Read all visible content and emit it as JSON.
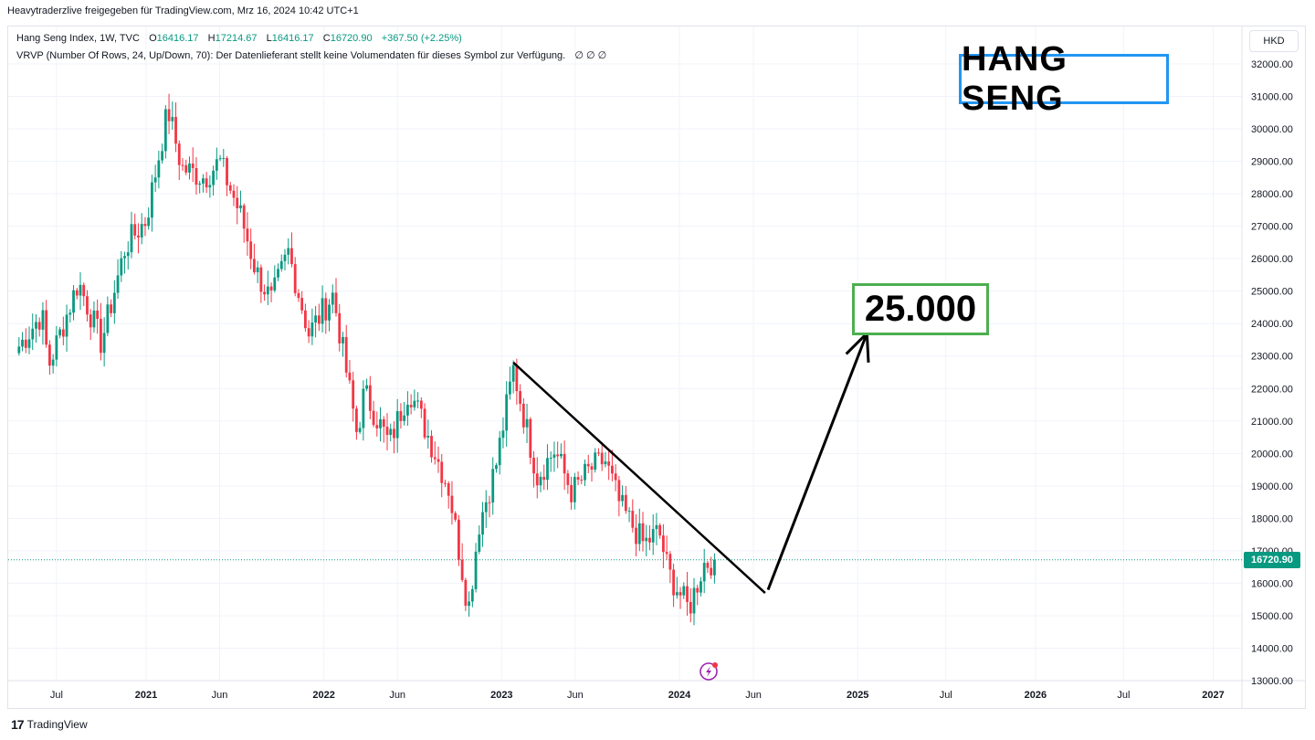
{
  "header": {
    "publisher_line": "Heavytraderzlive freigegeben für TradingView.com, Mrz 16, 2024 10:42 UTC+1"
  },
  "legend": {
    "symbol": "Hang Seng Index, 1W, TVC",
    "open_label": "O",
    "open": "16416.17",
    "high_label": "H",
    "high": "17214.67",
    "low_label": "L",
    "low": "16416.17",
    "close_label": "C",
    "close": "16720.90",
    "change": "+367.50 (+2.25%)",
    "indicator": "VRVP (Number Of Rows, 24, Up/Down, 70): Der Datenlieferant stellt keine Volumendaten für dieses Symbol zur Verfügung.",
    "indicator_values": "∅ ∅ ∅"
  },
  "currency": "HKD",
  "annotations": {
    "title": "HANG SENG",
    "target": "25.000"
  },
  "current_price": "16720.90",
  "footer": {
    "logo": "17",
    "brand": "TradingView"
  },
  "colors": {
    "up": "#089981",
    "down": "#f23645",
    "grid": "#f0f3fa",
    "price_line": "#089981",
    "title_border": "#2196f3",
    "target_border": "#4caf50",
    "drawing": "#000000"
  },
  "chart_data": {
    "type": "candlestick",
    "symbol": "Hang Seng Index",
    "interval": "1W",
    "y_axis": {
      "min": 13000,
      "max": 32000,
      "ticks": [
        32000,
        31000,
        30000,
        29000,
        28000,
        27000,
        26000,
        25000,
        24000,
        23000,
        22000,
        21000,
        20000,
        19000,
        18000,
        17000,
        16000,
        15000,
        14000,
        13000
      ],
      "tick_labels": [
        "32000.00",
        "31000.00",
        "30000.00",
        "29000.00",
        "28000.00",
        "27000.00",
        "26000.00",
        "25000.00",
        "24000.00",
        "23000.00",
        "22000.00",
        "21000.00",
        "20000.00",
        "19000.00",
        "18000.00",
        "17000.00",
        "16000.00",
        "15000.00",
        "14000.00",
        "13000.00"
      ]
    },
    "x_axis": {
      "ticks": [
        {
          "date": "2020-07-01",
          "label": "Jul"
        },
        {
          "date": "2021-01-01",
          "label": "2021"
        },
        {
          "date": "2021-06-01",
          "label": "Jun"
        },
        {
          "date": "2022-01-01",
          "label": "2022"
        },
        {
          "date": "2022-06-01",
          "label": "Jun"
        },
        {
          "date": "2023-01-01",
          "label": "2023"
        },
        {
          "date": "2023-06-01",
          "label": "Jun"
        },
        {
          "date": "2024-01-01",
          "label": "2024"
        },
        {
          "date": "2024-06-01",
          "label": "Jun"
        },
        {
          "date": "2025-01-01",
          "label": "2025"
        },
        {
          "date": "2025-07-01",
          "label": "Jul"
        },
        {
          "date": "2026-01-01",
          "label": "2026"
        },
        {
          "date": "2026-07-01",
          "label": "Jul"
        },
        {
          "date": "2027-01-01",
          "label": "2027"
        }
      ]
    },
    "anchors": [
      {
        "date": "2020-04-15",
        "close": 23300
      },
      {
        "date": "2020-06-01",
        "close": 24300
      },
      {
        "date": "2020-06-15",
        "close": 22700
      },
      {
        "date": "2020-08-15",
        "close": 25300
      },
      {
        "date": "2020-10-01",
        "close": 23400
      },
      {
        "date": "2020-11-20",
        "close": 26400
      },
      {
        "date": "2021-01-01",
        "close": 27200
      },
      {
        "date": "2021-02-15",
        "close": 30600
      },
      {
        "date": "2021-03-15",
        "close": 28800
      },
      {
        "date": "2021-05-01",
        "close": 28500
      },
      {
        "date": "2021-06-01",
        "close": 29000
      },
      {
        "date": "2021-07-15",
        "close": 27300
      },
      {
        "date": "2021-08-15",
        "close": 25600
      },
      {
        "date": "2021-09-15",
        "close": 24700
      },
      {
        "date": "2021-10-20",
        "close": 26200
      },
      {
        "date": "2021-12-01",
        "close": 23700
      },
      {
        "date": "2022-01-20",
        "close": 24900
      },
      {
        "date": "2022-03-10",
        "close": 20600
      },
      {
        "date": "2022-03-25",
        "close": 21900
      },
      {
        "date": "2022-05-15",
        "close": 20300
      },
      {
        "date": "2022-06-25",
        "close": 22000
      },
      {
        "date": "2022-08-15",
        "close": 20100
      },
      {
        "date": "2022-09-15",
        "close": 18900
      },
      {
        "date": "2022-10-25",
        "close": 15200
      },
      {
        "date": "2022-11-15",
        "close": 17800
      },
      {
        "date": "2022-12-20",
        "close": 19600
      },
      {
        "date": "2023-01-25",
        "close": 22600
      },
      {
        "date": "2023-03-15",
        "close": 19300
      },
      {
        "date": "2023-04-20",
        "close": 20100
      },
      {
        "date": "2023-05-25",
        "close": 18800
      },
      {
        "date": "2023-07-01",
        "close": 19500
      },
      {
        "date": "2023-08-01",
        "close": 19800
      },
      {
        "date": "2023-09-01",
        "close": 18400
      },
      {
        "date": "2023-10-20",
        "close": 17200
      },
      {
        "date": "2023-11-20",
        "close": 17600
      },
      {
        "date": "2023-12-10",
        "close": 16300
      },
      {
        "date": "2024-01-20",
        "close": 15200
      },
      {
        "date": "2024-02-20",
        "close": 16600
      },
      {
        "date": "2024-03-15",
        "close": 16720.9
      }
    ],
    "drawings": [
      {
        "type": "trendline",
        "from": {
          "date": "2023-01-25",
          "value": 22800
        },
        "to": {
          "date": "2024-06-25",
          "value": 15700
        }
      },
      {
        "type": "arrow",
        "from": {
          "date": "2024-07-01",
          "value": 15800
        },
        "to": {
          "date": "2025-01-20",
          "value": 23700
        }
      }
    ],
    "current_price": 16720.9
  }
}
